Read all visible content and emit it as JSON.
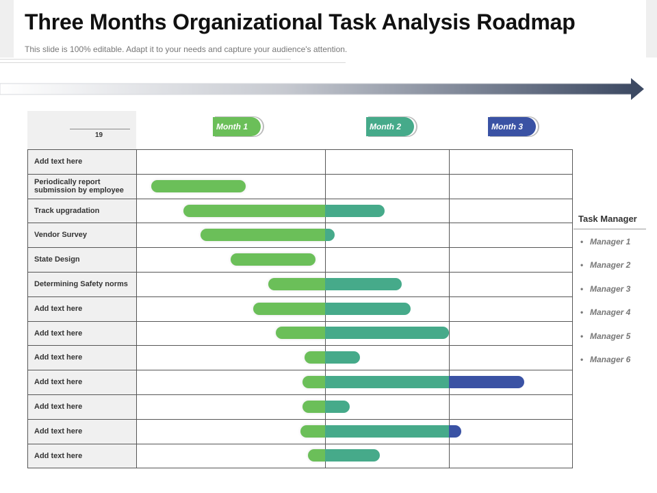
{
  "header": {
    "title": "Three Months Organizational Task Analysis Roadmap",
    "subtitle": "This slide is 100% editable. Adapt it to your needs and capture your audience's attention."
  },
  "table": {
    "header_number": "19",
    "months": [
      {
        "label": "Month 1",
        "color": "#6bbf59"
      },
      {
        "label": "Month 2",
        "color": "#46aa8a"
      },
      {
        "label": "Month 3",
        "color": "#3a52a4"
      }
    ],
    "rows": [
      {
        "label": "Add text here",
        "segments": []
      },
      {
        "label": "Periodically report submission by employee",
        "segments": [
          {
            "from": 0.08,
            "to": 0.58,
            "month": 1
          }
        ]
      },
      {
        "label": "Track upgradation",
        "segments": [
          {
            "from": 0.25,
            "to": 1.0,
            "month": 1
          },
          {
            "from": 0.0,
            "to": 0.48,
            "month": 2
          }
        ]
      },
      {
        "label": "Vendor Survey",
        "segments": [
          {
            "from": 0.34,
            "to": 1.0,
            "month": 1
          },
          {
            "from": 0.0,
            "to": 0.08,
            "month": 2
          }
        ]
      },
      {
        "label": "State Design",
        "segments": [
          {
            "from": 0.5,
            "to": 0.95,
            "month": 1
          }
        ]
      },
      {
        "label": "Determining Safety norms",
        "segments": [
          {
            "from": 0.7,
            "to": 1.0,
            "month": 1
          },
          {
            "from": 0.0,
            "to": 0.62,
            "month": 2
          }
        ]
      },
      {
        "label": "Add text here",
        "segments": [
          {
            "from": 0.62,
            "to": 1.0,
            "month": 1
          },
          {
            "from": 0.0,
            "to": 0.69,
            "month": 2
          }
        ]
      },
      {
        "label": "Add text here",
        "segments": [
          {
            "from": 0.74,
            "to": 1.0,
            "month": 1
          },
          {
            "from": 0.0,
            "to": 1.0,
            "month": 2
          }
        ]
      },
      {
        "label": "Add text here",
        "segments": [
          {
            "from": 0.89,
            "to": 1.0,
            "month": 1
          },
          {
            "from": 0.0,
            "to": 0.28,
            "month": 2
          }
        ]
      },
      {
        "label": "Add text here",
        "segments": [
          {
            "from": 0.88,
            "to": 1.0,
            "month": 1
          },
          {
            "from": 0.0,
            "to": 1.0,
            "month": 2
          },
          {
            "from": 0.0,
            "to": 0.61,
            "month": 3
          }
        ]
      },
      {
        "label": "Add text here",
        "segments": [
          {
            "from": 0.88,
            "to": 1.0,
            "month": 1
          },
          {
            "from": 0.0,
            "to": 0.2,
            "month": 2
          }
        ]
      },
      {
        "label": "Add text here",
        "segments": [
          {
            "from": 0.87,
            "to": 1.0,
            "month": 1
          },
          {
            "from": 0.0,
            "to": 1.0,
            "month": 2
          },
          {
            "from": 0.0,
            "to": 0.1,
            "month": 3
          }
        ]
      },
      {
        "label": "Add text here",
        "segments": [
          {
            "from": 0.91,
            "to": 1.0,
            "month": 1
          },
          {
            "from": 0.0,
            "to": 0.44,
            "month": 2
          }
        ]
      }
    ]
  },
  "legend": {
    "title": "Task Manager",
    "bullet": "•",
    "items": [
      "Manager 1",
      "Manager 2",
      "Manager 3",
      "Manager 4",
      "Manager 5",
      "Manager 6"
    ]
  }
}
